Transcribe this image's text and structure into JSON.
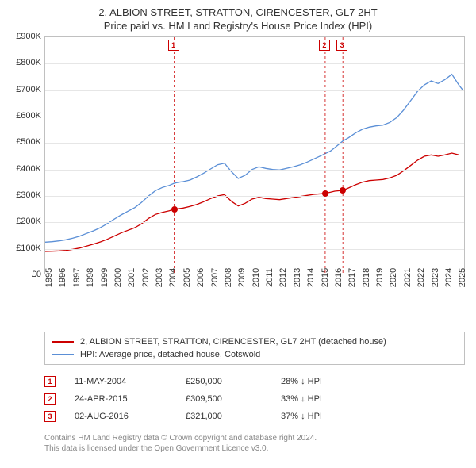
{
  "title": {
    "main": "2, ALBION STREET, STRATTON, CIRENCESTER, GL7 2HT",
    "sub": "Price paid vs. HM Land Registry's House Price Index (HPI)"
  },
  "chart": {
    "type": "line",
    "background_color": "#ffffff",
    "grid_color": "#e6e6e6",
    "axis_color": "#c0c0c0",
    "label_fontsize": 11,
    "xlim": [
      1995,
      2025.5
    ],
    "ylim": [
      0,
      900000
    ],
    "ytick_step": 100000,
    "yticks": [
      {
        "v": 0,
        "label": "£0"
      },
      {
        "v": 100000,
        "label": "£100K"
      },
      {
        "v": 200000,
        "label": "£200K"
      },
      {
        "v": 300000,
        "label": "£300K"
      },
      {
        "v": 400000,
        "label": "£400K"
      },
      {
        "v": 500000,
        "label": "£500K"
      },
      {
        "v": 600000,
        "label": "£600K"
      },
      {
        "v": 700000,
        "label": "£700K"
      },
      {
        "v": 800000,
        "label": "£800K"
      },
      {
        "v": 900000,
        "label": "£900K"
      }
    ],
    "xticks": [
      1995,
      1996,
      1997,
      1998,
      1999,
      2000,
      2001,
      2002,
      2003,
      2004,
      2005,
      2006,
      2007,
      2008,
      2009,
      2010,
      2011,
      2012,
      2013,
      2014,
      2015,
      2016,
      2017,
      2018,
      2019,
      2020,
      2021,
      2022,
      2023,
      2024,
      2025
    ],
    "series": [
      {
        "name": "property",
        "label": "2, ALBION STREET, STRATTON, CIRENCESTER, GL7 2HT (detached house)",
        "color": "#cc0000",
        "line_width": 1.3,
        "data": [
          [
            1995.0,
            90000
          ],
          [
            1995.5,
            91000
          ],
          [
            1996.0,
            92000
          ],
          [
            1996.5,
            94000
          ],
          [
            1997.0,
            98000
          ],
          [
            1997.5,
            103000
          ],
          [
            1998.0,
            110000
          ],
          [
            1998.5,
            118000
          ],
          [
            1999.0,
            126000
          ],
          [
            1999.5,
            136000
          ],
          [
            2000.0,
            148000
          ],
          [
            2000.5,
            160000
          ],
          [
            2001.0,
            170000
          ],
          [
            2001.5,
            180000
          ],
          [
            2002.0,
            195000
          ],
          [
            2002.5,
            215000
          ],
          [
            2003.0,
            230000
          ],
          [
            2003.5,
            238000
          ],
          [
            2004.0,
            244000
          ],
          [
            2004.36,
            250000
          ],
          [
            2004.7,
            252000
          ],
          [
            2005.0,
            254000
          ],
          [
            2005.5,
            260000
          ],
          [
            2006.0,
            268000
          ],
          [
            2006.5,
            278000
          ],
          [
            2007.0,
            290000
          ],
          [
            2007.5,
            300000
          ],
          [
            2008.0,
            305000
          ],
          [
            2008.5,
            280000
          ],
          [
            2009.0,
            262000
          ],
          [
            2009.5,
            272000
          ],
          [
            2010.0,
            288000
          ],
          [
            2010.5,
            295000
          ],
          [
            2011.0,
            290000
          ],
          [
            2011.5,
            288000
          ],
          [
            2012.0,
            286000
          ],
          [
            2012.5,
            290000
          ],
          [
            2013.0,
            294000
          ],
          [
            2013.5,
            298000
          ],
          [
            2014.0,
            302000
          ],
          [
            2014.5,
            306000
          ],
          [
            2015.0,
            308000
          ],
          [
            2015.31,
            309500
          ],
          [
            2015.7,
            314000
          ],
          [
            2016.0,
            318000
          ],
          [
            2016.59,
            321000
          ],
          [
            2017.0,
            330000
          ],
          [
            2017.5,
            342000
          ],
          [
            2018.0,
            352000
          ],
          [
            2018.5,
            358000
          ],
          [
            2019.0,
            360000
          ],
          [
            2019.5,
            362000
          ],
          [
            2020.0,
            368000
          ],
          [
            2020.5,
            378000
          ],
          [
            2021.0,
            395000
          ],
          [
            2021.5,
            415000
          ],
          [
            2022.0,
            435000
          ],
          [
            2022.5,
            450000
          ],
          [
            2023.0,
            455000
          ],
          [
            2023.5,
            450000
          ],
          [
            2024.0,
            455000
          ],
          [
            2024.5,
            462000
          ],
          [
            2025.0,
            455000
          ]
        ]
      },
      {
        "name": "hpi",
        "label": "HPI: Average price, detached house, Cotswold",
        "color": "#5b8fd6",
        "line_width": 1.3,
        "data": [
          [
            1995.0,
            125000
          ],
          [
            1995.5,
            127000
          ],
          [
            1996.0,
            130000
          ],
          [
            1996.5,
            134000
          ],
          [
            1997.0,
            140000
          ],
          [
            1997.5,
            148000
          ],
          [
            1998.0,
            158000
          ],
          [
            1998.5,
            168000
          ],
          [
            1999.0,
            180000
          ],
          [
            1999.5,
            195000
          ],
          [
            2000.0,
            212000
          ],
          [
            2000.5,
            228000
          ],
          [
            2001.0,
            242000
          ],
          [
            2001.5,
            256000
          ],
          [
            2002.0,
            276000
          ],
          [
            2002.5,
            300000
          ],
          [
            2003.0,
            320000
          ],
          [
            2003.5,
            332000
          ],
          [
            2004.0,
            340000
          ],
          [
            2004.36,
            348000
          ],
          [
            2004.7,
            352000
          ],
          [
            2005.0,
            354000
          ],
          [
            2005.5,
            360000
          ],
          [
            2006.0,
            372000
          ],
          [
            2006.5,
            386000
          ],
          [
            2007.0,
            402000
          ],
          [
            2007.5,
            418000
          ],
          [
            2008.0,
            424000
          ],
          [
            2008.5,
            392000
          ],
          [
            2009.0,
            366000
          ],
          [
            2009.5,
            378000
          ],
          [
            2010.0,
            400000
          ],
          [
            2010.5,
            410000
          ],
          [
            2011.0,
            404000
          ],
          [
            2011.5,
            400000
          ],
          [
            2012.0,
            398000
          ],
          [
            2012.5,
            404000
          ],
          [
            2013.0,
            410000
          ],
          [
            2013.5,
            418000
          ],
          [
            2014.0,
            428000
          ],
          [
            2014.5,
            440000
          ],
          [
            2015.0,
            452000
          ],
          [
            2015.31,
            460000
          ],
          [
            2015.7,
            470000
          ],
          [
            2016.0,
            482000
          ],
          [
            2016.59,
            508000
          ],
          [
            2017.0,
            520000
          ],
          [
            2017.5,
            538000
          ],
          [
            2018.0,
            552000
          ],
          [
            2018.5,
            560000
          ],
          [
            2019.0,
            565000
          ],
          [
            2019.5,
            568000
          ],
          [
            2020.0,
            578000
          ],
          [
            2020.5,
            596000
          ],
          [
            2021.0,
            625000
          ],
          [
            2021.5,
            660000
          ],
          [
            2022.0,
            695000
          ],
          [
            2022.5,
            720000
          ],
          [
            2023.0,
            735000
          ],
          [
            2023.5,
            725000
          ],
          [
            2024.0,
            740000
          ],
          [
            2024.5,
            760000
          ],
          [
            2025.0,
            720000
          ],
          [
            2025.3,
            700000
          ]
        ]
      }
    ],
    "markers": [
      {
        "n": "1",
        "x": 2004.36,
        "y": 250000,
        "dot_color": "#cc0000"
      },
      {
        "n": "2",
        "x": 2015.31,
        "y": 309500,
        "dot_color": "#cc0000"
      },
      {
        "n": "3",
        "x": 2016.59,
        "y": 321000,
        "dot_color": "#cc0000"
      }
    ]
  },
  "legend": {
    "items": [
      {
        "color": "#cc0000",
        "label_path": "chart.series.0.label"
      },
      {
        "color": "#5b8fd6",
        "label_path": "chart.series.1.label"
      }
    ]
  },
  "transactions": [
    {
      "n": "1",
      "date": "11-MAY-2004",
      "price": "£250,000",
      "delta": "28% ↓ HPI"
    },
    {
      "n": "2",
      "date": "24-APR-2015",
      "price": "£309,500",
      "delta": "33% ↓ HPI"
    },
    {
      "n": "3",
      "date": "02-AUG-2016",
      "price": "£321,000",
      "delta": "37% ↓ HPI"
    }
  ],
  "footer": {
    "line1": "Contains HM Land Registry data © Crown copyright and database right 2024.",
    "line2": "This data is licensed under the Open Government Licence v3.0."
  }
}
